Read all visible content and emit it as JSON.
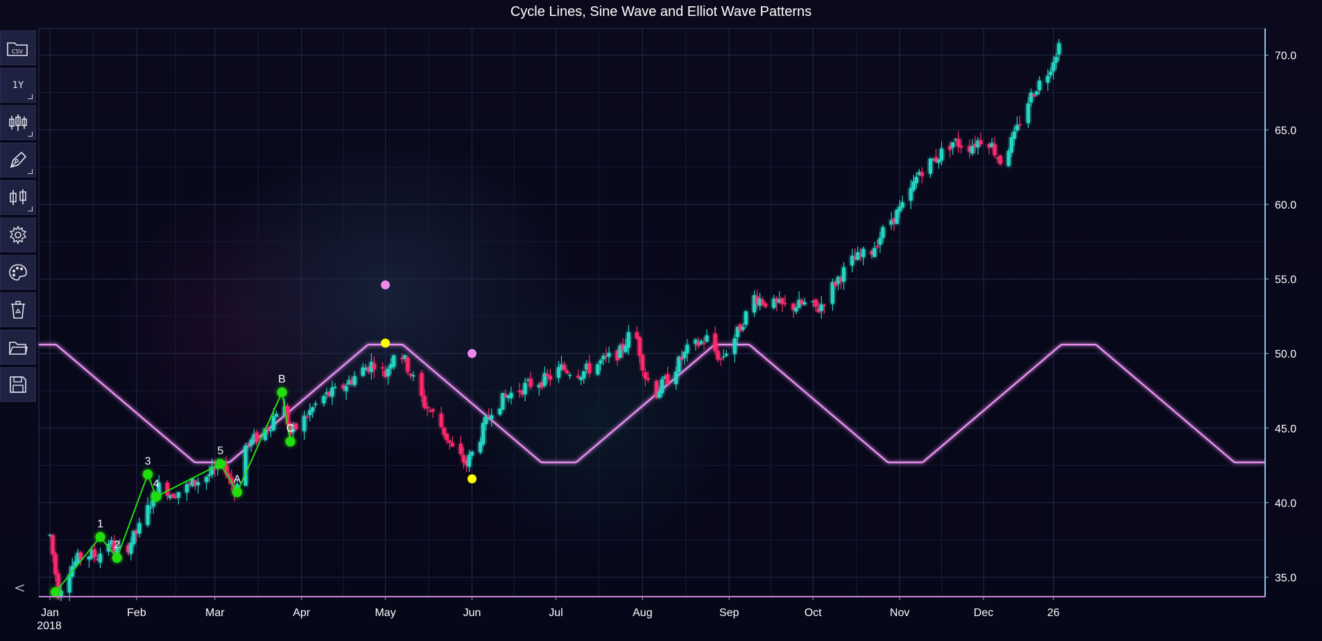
{
  "chart_data": {
    "type": "candlestick",
    "title": "Cycle Lines, Sine Wave and Elliot Wave Patterns",
    "x_axis": {
      "start": "2018-01-01",
      "end": "2018-12-28",
      "tick_labels": [
        {
          "date": "2018-01-01",
          "label": "Jan",
          "sub": "2018"
        },
        {
          "date": "2018-02-01",
          "label": "Feb"
        },
        {
          "date": "2018-03-01",
          "label": "Mar"
        },
        {
          "date": "2018-04-01",
          "label": "Apr"
        },
        {
          "date": "2018-05-01",
          "label": "May"
        },
        {
          "date": "2018-06-01",
          "label": "Jun"
        },
        {
          "date": "2018-07-01",
          "label": "Jul"
        },
        {
          "date": "2018-08-01",
          "label": "Aug"
        },
        {
          "date": "2018-09-01",
          "label": "Sep"
        },
        {
          "date": "2018-10-01",
          "label": "Oct"
        },
        {
          "date": "2018-11-01",
          "label": "Nov"
        },
        {
          "date": "2018-12-01",
          "label": "Dec"
        },
        {
          "date": "2018-12-26",
          "label": "26"
        }
      ]
    },
    "y_axis": {
      "range": [
        33.7,
        71.8
      ],
      "position": "right",
      "ticks": [
        35.0,
        40.0,
        45.0,
        50.0,
        55.0,
        60.0,
        65.0,
        70.0
      ],
      "tick_labels": [
        "35.0",
        "40.0",
        "45.0",
        "50.0",
        "55.0",
        "60.0",
        "65.0",
        "70.0"
      ]
    },
    "grid": true,
    "price_path": [
      [
        "2018-01-01",
        37.8
      ],
      [
        "2018-01-04",
        34.0
      ],
      [
        "2018-01-08",
        35.6
      ],
      [
        "2018-01-13",
        36.6
      ],
      [
        "2018-01-18",
        36.4
      ],
      [
        "2018-01-22",
        37.4
      ],
      [
        "2018-01-25",
        36.7
      ],
      [
        "2018-01-29",
        37.1
      ],
      [
        "2018-02-02",
        38.3
      ],
      [
        "2018-02-06",
        40.0
      ],
      [
        "2018-02-10",
        41.4
      ],
      [
        "2018-02-13",
        40.6
      ],
      [
        "2018-02-18",
        40.9
      ],
      [
        "2018-02-24",
        41.6
      ],
      [
        "2018-03-01",
        42.1
      ],
      [
        "2018-03-05",
        42.3
      ],
      [
        "2018-03-08",
        40.8
      ],
      [
        "2018-03-12",
        43.8
      ],
      [
        "2018-03-17",
        44.5
      ],
      [
        "2018-03-21",
        45.3
      ],
      [
        "2018-03-25",
        47.1
      ],
      [
        "2018-03-28",
        44.6
      ],
      [
        "2018-04-01",
        45.4
      ],
      [
        "2018-04-08",
        47.0
      ],
      [
        "2018-04-15",
        47.6
      ],
      [
        "2018-04-22",
        48.8
      ],
      [
        "2018-04-27",
        49.4
      ],
      [
        "2018-05-01",
        48.6
      ],
      [
        "2018-05-05",
        50.6
      ],
      [
        "2018-05-09",
        49.1
      ],
      [
        "2018-05-15",
        46.6
      ],
      [
        "2018-05-20",
        45.5
      ],
      [
        "2018-05-25",
        43.6
      ],
      [
        "2018-05-30",
        42.6
      ],
      [
        "2018-06-03",
        44.0
      ],
      [
        "2018-06-08",
        46.3
      ],
      [
        "2018-06-14",
        47.2
      ],
      [
        "2018-06-21",
        47.9
      ],
      [
        "2018-06-28",
        48.3
      ],
      [
        "2018-07-03",
        49.0
      ],
      [
        "2018-07-10",
        48.7
      ],
      [
        "2018-07-17",
        49.4
      ],
      [
        "2018-07-24",
        50.1
      ],
      [
        "2018-07-29",
        51.8
      ],
      [
        "2018-08-02",
        48.5
      ],
      [
        "2018-08-06",
        47.4
      ],
      [
        "2018-08-11",
        48.6
      ],
      [
        "2018-08-17",
        50.2
      ],
      [
        "2018-08-24",
        51.0
      ],
      [
        "2018-08-29",
        49.6
      ],
      [
        "2018-09-04",
        51.4
      ],
      [
        "2018-09-10",
        53.8
      ],
      [
        "2018-09-16",
        53.3
      ],
      [
        "2018-09-22",
        53.1
      ],
      [
        "2018-09-28",
        53.3
      ],
      [
        "2018-10-03",
        53.0
      ],
      [
        "2018-10-09",
        54.8
      ],
      [
        "2018-10-15",
        56.2
      ],
      [
        "2018-10-22",
        56.9
      ],
      [
        "2018-10-28",
        58.8
      ],
      [
        "2018-11-03",
        60.0
      ],
      [
        "2018-11-08",
        62.2
      ],
      [
        "2018-11-14",
        63.1
      ],
      [
        "2018-11-20",
        64.2
      ],
      [
        "2018-11-26",
        63.9
      ],
      [
        "2018-12-02",
        64.6
      ],
      [
        "2018-12-07",
        62.9
      ],
      [
        "2018-12-12",
        64.5
      ],
      [
        "2018-12-16",
        66.6
      ],
      [
        "2018-12-20",
        67.9
      ],
      [
        "2018-12-24",
        68.9
      ],
      [
        "2018-12-28",
        70.7
      ]
    ],
    "cycle_lines": {
      "color": "#ffff00",
      "dates": [
        "2018-05-01",
        "2018-06-01",
        "2018-07-02",
        "2018-08-02",
        "2018-09-02",
        "2018-10-03"
      ]
    },
    "cycle_anchor_points": [
      {
        "date": "2018-05-01",
        "y": 50.7,
        "color": "#ffff00"
      },
      {
        "date": "2018-06-01",
        "y": 41.6,
        "color": "#ffff00"
      },
      {
        "date": "2018-05-01",
        "y": 54.6,
        "color": "#ee88ee"
      },
      {
        "date": "2018-06-01",
        "y": 50.0,
        "color": "#ee88ee"
      }
    ],
    "sine_wave": {
      "color": "#e88ef0",
      "period_days": 124,
      "peak_dates": [
        "2018-02-28",
        "2018-05-01",
        "2018-07-02",
        "2018-09-02",
        "2018-11-03"
      ],
      "high": 50.6,
      "low": 42.7
    },
    "elliott_wave": {
      "color": "#22dd11",
      "points": [
        {
          "date": "2018-01-03",
          "y": 34.0,
          "label": ""
        },
        {
          "date": "2018-01-19",
          "y": 37.7,
          "label": "1"
        },
        {
          "date": "2018-01-25",
          "y": 36.3,
          "label": "2"
        },
        {
          "date": "2018-02-05",
          "y": 41.9,
          "label": "3"
        },
        {
          "date": "2018-02-08",
          "y": 40.4,
          "label": "4"
        },
        {
          "date": "2018-03-03",
          "y": 42.6,
          "label": "5"
        },
        {
          "date": "2018-03-09",
          "y": 40.7,
          "label": "A"
        },
        {
          "date": "2018-03-25",
          "y": 47.4,
          "label": "B"
        },
        {
          "date": "2018-03-28",
          "y": 44.1,
          "label": "C"
        }
      ]
    },
    "colors": {
      "up": "#26d6c4",
      "down": "#ff2a6d",
      "axis_line": "#cc88dd",
      "grid": "#1d2540",
      "label": "#ffffff"
    }
  },
  "toolbar": {
    "items": [
      {
        "icon": "folder-csv-icon",
        "text": "CSV"
      },
      {
        "icon": "timeframe-icon",
        "text": "1Y"
      },
      {
        "icon": "candlestick-chart-icon",
        "text": ""
      },
      {
        "icon": "pen-draw-icon",
        "text": ""
      },
      {
        "icon": "indicator-icon",
        "text": ""
      },
      {
        "icon": "gear-icon",
        "text": ""
      },
      {
        "icon": "palette-icon",
        "text": ""
      },
      {
        "icon": "recycle-bin-icon",
        "text": ""
      },
      {
        "icon": "folder-open-icon",
        "text": ""
      },
      {
        "icon": "save-icon",
        "text": ""
      }
    ],
    "collapse": "<"
  }
}
